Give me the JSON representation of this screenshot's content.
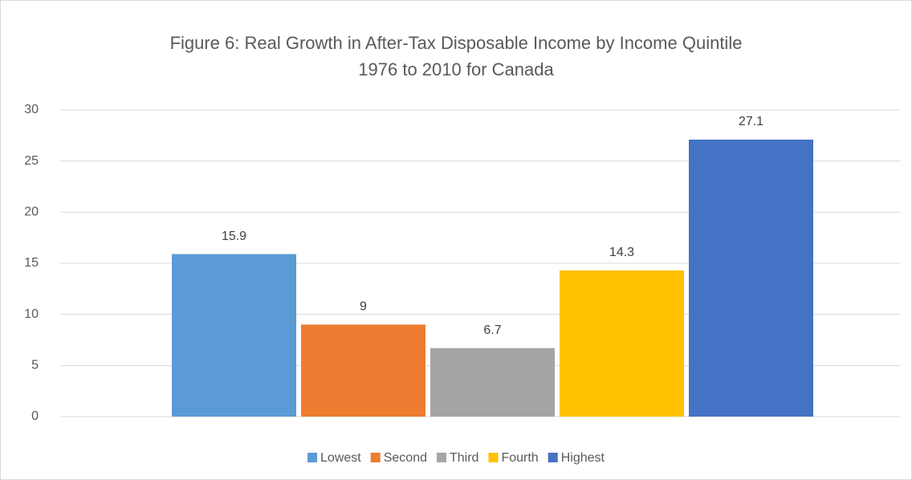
{
  "chart_data": {
    "type": "bar",
    "title": [
      "Figure 6:  Real Growth in After-Tax Disposable Income by Income Quintile",
      "1976 to 2010 for Canada"
    ],
    "categories": [
      null
    ],
    "series": [
      {
        "name": "Lowest",
        "color": "#5b9bd5",
        "values": [
          15.9
        ]
      },
      {
        "name": "Second",
        "color": "#ed7d31",
        "values": [
          9
        ]
      },
      {
        "name": "Third",
        "color": "#a5a5a5",
        "values": [
          6.7
        ]
      },
      {
        "name": "Fourth",
        "color": "#ffc000",
        "values": [
          14.3
        ]
      },
      {
        "name": "Highest",
        "color": "#4472c4",
        "values": [
          27.1
        ]
      }
    ],
    "ylim": [
      0,
      30
    ],
    "yticks": [
      0,
      5,
      10,
      15,
      20,
      25,
      30
    ],
    "grid": true,
    "legend": "bottom"
  }
}
